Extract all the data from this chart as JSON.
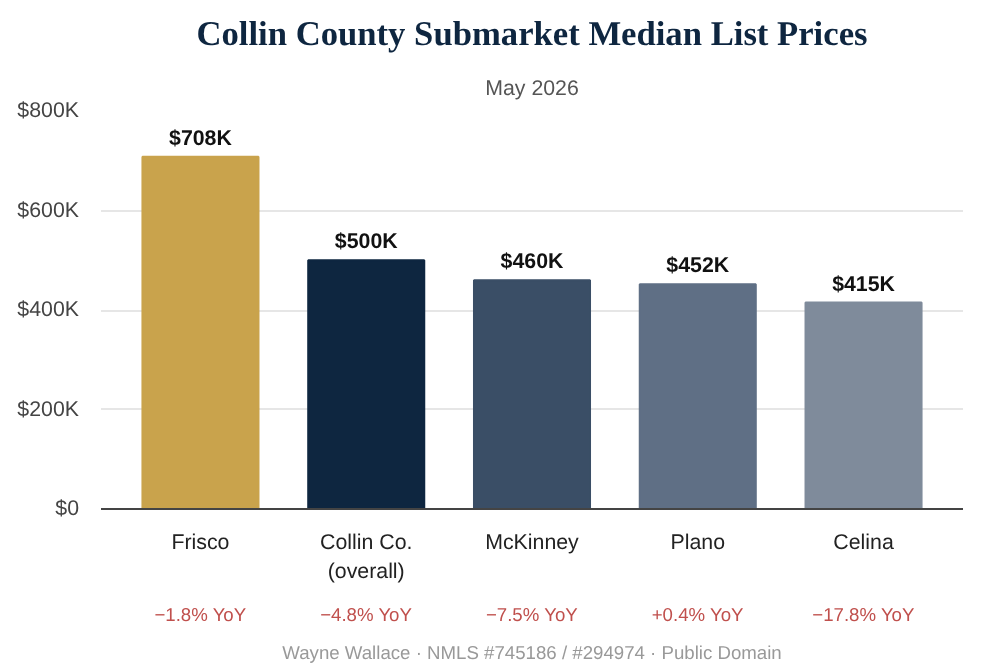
{
  "chart_data": {
    "type": "bar",
    "title": "Collin County Submarket Median List Prices",
    "subtitle": "May 2026",
    "categories": [
      "Frisco",
      "Collin Co.\n(overall)",
      "McKinney",
      "Plano",
      "Celina"
    ],
    "values": [
      708000,
      500000,
      460000,
      452000,
      415000
    ],
    "colors": [
      "#c9a34c",
      "#0e2640",
      "#3a4e66",
      "#5f6f85",
      "#7f8b9b"
    ],
    "value_labels": [
      "$708K",
      "$500K",
      "$460K",
      "$452K",
      "$415K"
    ],
    "ylim": [
      0,
      800000
    ],
    "yticks": [
      {
        "value": 0,
        "label": "$0"
      },
      {
        "value": 200000,
        "label": "$200K"
      },
      {
        "value": 400000,
        "label": "$400K"
      },
      {
        "value": 600000,
        "label": "$600K"
      },
      {
        "value": 800000,
        "label": "$800K"
      }
    ],
    "grid": "y",
    "annotations": [
      "−1.8% YoY",
      "−4.8% YoY",
      "−7.5% YoY",
      "+0.4% YoY",
      "−17.8% YoY",
      "Wayne Wallace · NMLS #745186 / #294974 · Public Domain"
    ]
  }
}
